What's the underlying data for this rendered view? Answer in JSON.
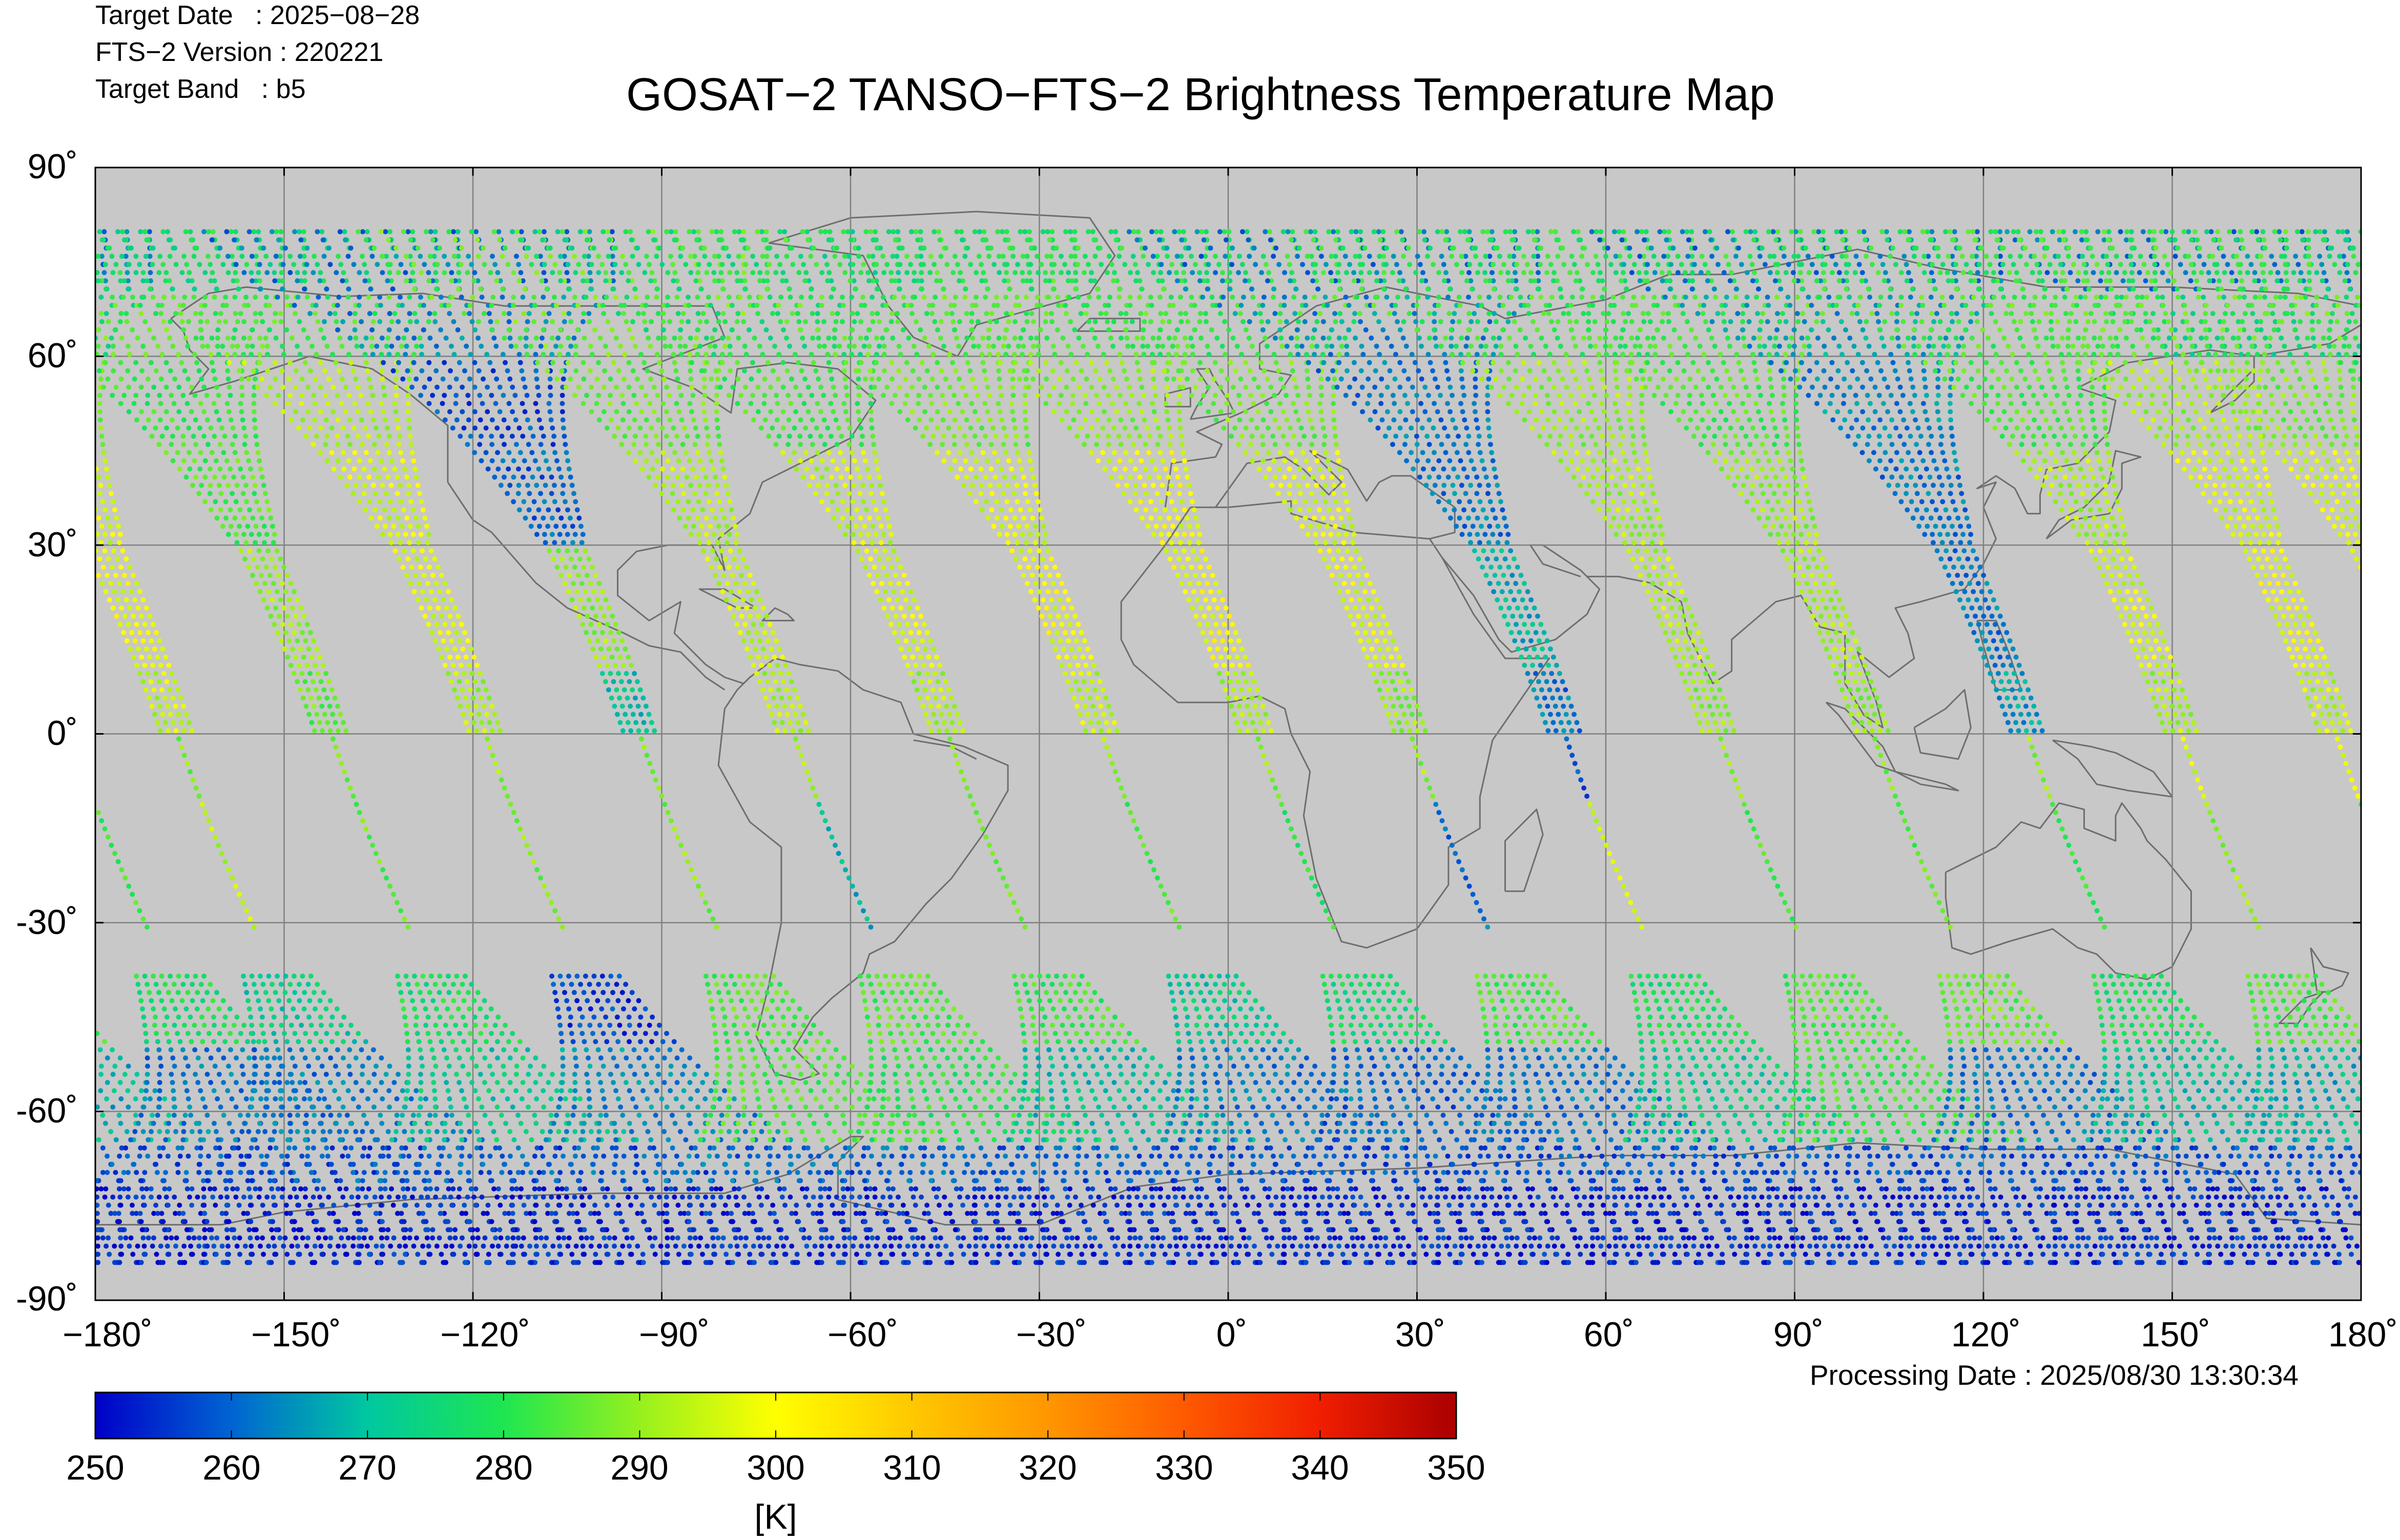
{
  "header": {
    "target_date": "Target Date   : 2025−08−28",
    "fts_version": "FTS−2 Version : 220221",
    "target_band": "Target Band   : b5"
  },
  "footer": {
    "processing_date": "Processing Date : 2025/08/30 13:30:34"
  },
  "chart_data": {
    "type": "scatter",
    "title": "GOSAT−2 TANSO−FTS−2 Brightness Temperature Map",
    "x_ticks": [
      "−180˚",
      "−150˚",
      "−120˚",
      "−90˚",
      "−60˚",
      "−30˚",
      "0˚",
      "30˚",
      "60˚",
      "90˚",
      "120˚",
      "150˚",
      "180˚"
    ],
    "y_ticks": [
      "90˚",
      "60˚",
      "30˚",
      "0˚",
      "-30˚",
      "-60˚",
      "-90˚"
    ],
    "xlim": [
      -180,
      180
    ],
    "ylim": [
      -90,
      90
    ],
    "grid": true,
    "colorbar": {
      "ticks": [
        "250",
        "260",
        "270",
        "280",
        "290",
        "300",
        "310",
        "320",
        "330",
        "340",
        "350"
      ],
      "range": [
        250,
        350
      ],
      "unit": "[K]",
      "colormap": [
        "#0000c8",
        "#0064d2",
        "#00c8a0",
        "#1ee650",
        "#96f01e",
        "#ffff00",
        "#ffc800",
        "#ff9600",
        "#ff5a00",
        "#f01e00",
        "#aa0000"
      ]
    },
    "colors": {
      "plot_background": "#c8c8c8",
      "grid": "#808080",
      "coastline": "#6e6e6e"
    },
    "orbit_tracks": {
      "equator_crossing_longitudes": [
        -167,
        -142.5,
        -118,
        -93.5,
        -69,
        -44.5,
        -20,
        4.5,
        29,
        53.5,
        78,
        102.5,
        127,
        151.5,
        176
      ],
      "series": [
        {
          "lat_band": "70 to 80",
          "values": [
            262,
            278,
            276,
            262,
            285,
            275,
            282,
            278,
            280,
            262,
            280,
            280,
            262,
            280,
            282
          ]
        },
        {
          "lat_band": "60 to 70",
          "values": [
            275,
            285,
            282,
            264,
            286,
            278,
            284,
            283,
            282,
            264,
            282,
            283,
            266,
            283,
            284
          ]
        },
        {
          "lat_band": "45 to 60",
          "values": [
            288,
            282,
            292,
            258,
            286,
            282,
            287,
            289,
            287,
            262,
            290,
            284,
            264,
            284,
            291
          ]
        },
        {
          "lat_band": "30 to 45",
          "values": [
            296,
            284,
            296,
            260,
            292,
            294,
            296,
            298,
            296,
            262,
            292,
            290,
            262,
            292,
            296
          ]
        },
        {
          "lat_band": "10 to 30",
          "values": [
            298,
            290,
            297,
            290,
            294,
            296,
            298,
            299,
            297,
            268,
            293,
            292,
            262,
            296,
            298
          ]
        },
        {
          "lat_band": "0 to 10",
          "values": [
            294,
            286,
            292,
            270,
            292,
            292,
            294,
            292,
            290,
            262,
            290,
            290,
            266,
            292,
            294
          ]
        },
        {
          "lat_band": "-10 to 0",
          "values": [
            288,
            288,
            290,
            288,
            290,
            288,
            290,
            288,
            290,
            258,
            290,
            288,
            290,
            296,
            298
          ]
        },
        {
          "lat_band": "-31 to -10",
          "values": [
            293,
            286,
            288,
            288,
            268,
            286,
            284,
            280,
            262,
            296,
            284,
            284,
            280,
            290,
            282
          ]
        },
        {
          "lat_band": "-50 to -38",
          "values": [
            272,
            278,
            256,
            284,
            284,
            282,
            272,
            276,
            284,
            278,
            284,
            286,
            278,
            284,
            278
          ]
        },
        {
          "lat_band": "-65 to -50",
          "values": [
            262,
            272,
            264,
            284,
            280,
            270,
            262,
            260,
            262,
            272,
            282,
            262,
            270,
            268,
            262
          ]
        },
        {
          "lat_band": "-72 to -65",
          "values": [
            258,
            260,
            258,
            262,
            260,
            258,
            258,
            258,
            258,
            258,
            258,
            258,
            258,
            258,
            258
          ]
        },
        {
          "lat_band": "-84 to -72",
          "values": [
            254,
            254,
            254,
            254,
            254,
            254,
            254,
            254,
            254,
            254,
            254,
            254,
            254,
            254,
            254
          ]
        }
      ]
    }
  }
}
